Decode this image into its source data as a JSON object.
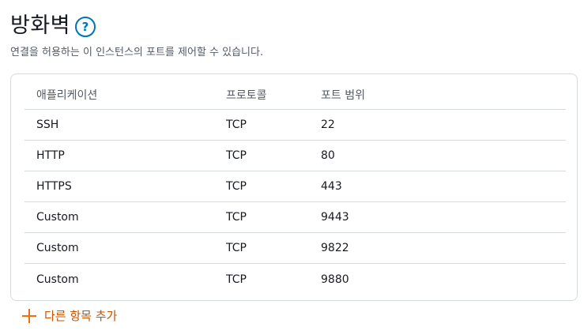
{
  "header": {
    "title": "방화벽",
    "help_icon": "?"
  },
  "subtitle": "연결을 허용하는 이 인스턴스의 포트를 제어할 수 있습니다.",
  "table": {
    "columns": [
      "애플리케이션",
      "프로토콜",
      "포트 범위"
    ],
    "rows": [
      [
        "SSH",
        "TCP",
        "22"
      ],
      [
        "HTTP",
        "TCP",
        "80"
      ],
      [
        "HTTPS",
        "TCP",
        "443"
      ],
      [
        "Custom",
        "TCP",
        "9443"
      ],
      [
        "Custom",
        "TCP",
        "9822"
      ],
      [
        "Custom",
        "TCP",
        "9880"
      ]
    ]
  },
  "add_button": {
    "label": "다른 항목 추가",
    "icon": "plus-icon"
  },
  "colors": {
    "accent": "#0073bb",
    "add_orange": "#ec7211",
    "border": "#d5dbdb"
  }
}
